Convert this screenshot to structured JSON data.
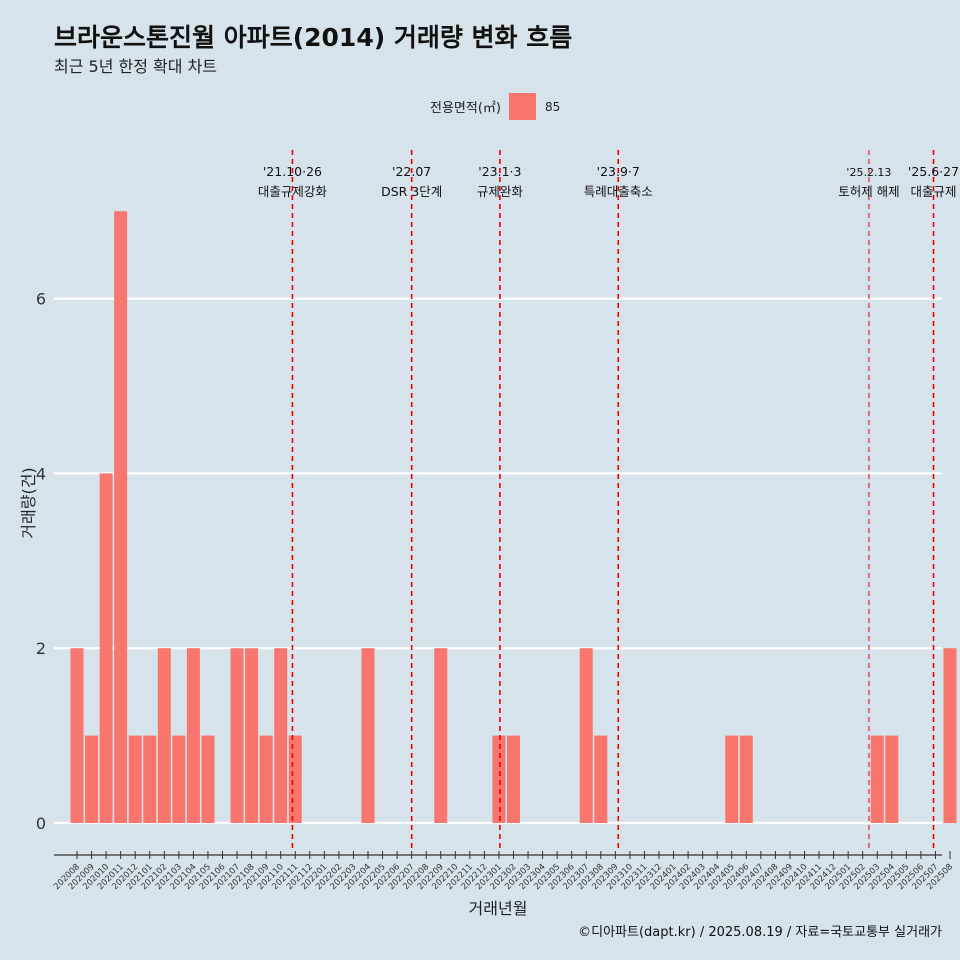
{
  "title": "브라운스톤진월 아파트(2014) 거래량 변화 흐름",
  "subtitle": "최근 5년 한정 확대 차트",
  "legend_title": "전용면적(㎡)",
  "caption": "©디아파트(dapt.kr) / 2025.08.19 / 자료=국토교통부 실거래가",
  "colors": {
    "background": "#d6e3ea",
    "bar": "#f8766d",
    "event_line": "#ee0000",
    "grid": "#ffffff"
  },
  "chart_data": {
    "type": "bar",
    "title": "브라운스톤진월 아파트(2014) 거래량 변화 흐름",
    "subtitle": "최근 5년 한정 확대 차트",
    "xlabel": "거래년월",
    "ylabel": "거래량(건)",
    "ylim": [
      0,
      7.5
    ],
    "y_ticks": [
      0,
      2,
      4,
      6
    ],
    "grid": true,
    "legend_placement": "top",
    "categories": [
      "202008",
      "202009",
      "202010",
      "202011",
      "202012",
      "202101",
      "202102",
      "202103",
      "202104",
      "202105",
      "202106",
      "202107",
      "202108",
      "202109",
      "202110",
      "202111",
      "202112",
      "202201",
      "202202",
      "202203",
      "202204",
      "202205",
      "202206",
      "202207",
      "202208",
      "202209",
      "202210",
      "202211",
      "202212",
      "202301",
      "202302",
      "202303",
      "202304",
      "202305",
      "202306",
      "202307",
      "202308",
      "202309",
      "202310",
      "202311",
      "202312",
      "202401",
      "202402",
      "202403",
      "202404",
      "202405",
      "202406",
      "202407",
      "202408",
      "202409",
      "202410",
      "202411",
      "202412",
      "202501",
      "202502",
      "202503",
      "202504",
      "202505",
      "202506",
      "202507",
      "202508"
    ],
    "series": [
      {
        "name": "85",
        "values": [
          2,
          1,
          4,
          7,
          1,
          1,
          2,
          1,
          2,
          1,
          0,
          2,
          2,
          1,
          2,
          1,
          0,
          0,
          0,
          0,
          2,
          0,
          0,
          0,
          0,
          2,
          0,
          0,
          0,
          1,
          1,
          0,
          0,
          0,
          0,
          2,
          1,
          0,
          0,
          0,
          0,
          0,
          0,
          0,
          0,
          1,
          1,
          0,
          0,
          0,
          0,
          0,
          0,
          0,
          0,
          1,
          1,
          0,
          0,
          0,
          2
        ]
      }
    ],
    "events": [
      {
        "date": "2021-10-26",
        "label1": "'21.10·26",
        "label2": "대출규제강화"
      },
      {
        "date": "2022-07-01",
        "label1": "'22.07",
        "label2": "DSR 3단계"
      },
      {
        "date": "2023-01-03",
        "label1": "'23.1·3",
        "label2": "규제완화"
      },
      {
        "date": "2023-09-07",
        "label1": "'23.9·7",
        "label2": "특례대출축소"
      },
      {
        "date": "2025-02-13",
        "label1": "'25.2.13",
        "label2": "토허제 해제"
      },
      {
        "date": "2025-06-27",
        "label1": "'25.6·27",
        "label2": "대출규제"
      }
    ]
  }
}
